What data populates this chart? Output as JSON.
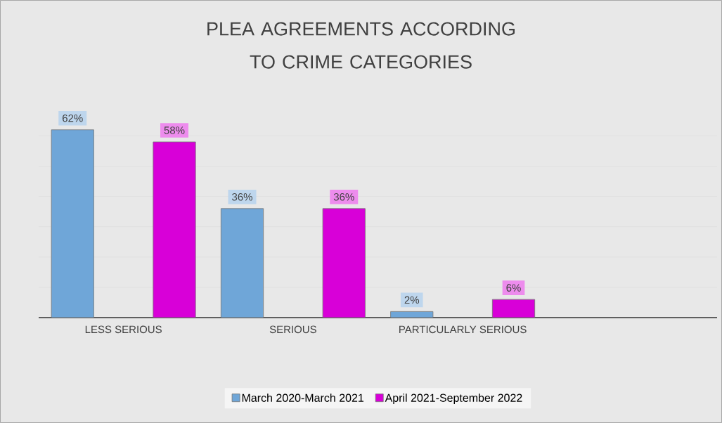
{
  "chart_data": {
    "type": "bar",
    "title": "PLEA AGREEMENTS ACCORDING TO CRIME CATEGORIES",
    "categories": [
      "LESS SERIOUS",
      "SERIOUS",
      "PARTICULARLY SERIOUS",
      null
    ],
    "series": [
      {
        "name": "March 2020-March 2021",
        "color": "#6fa6d8",
        "values": [
          62,
          36,
          2,
          null
        ],
        "value_labels": [
          "62%",
          "36%",
          "2%",
          null
        ]
      },
      {
        "name": "April 2021-September 2022",
        "color": "#d800d8",
        "values": [
          58,
          36,
          6,
          null
        ],
        "value_labels": [
          "58%",
          "36%",
          "6%",
          null
        ]
      }
    ],
    "grid": "y",
    "tick_labels": "x",
    "legend": "bottom"
  }
}
